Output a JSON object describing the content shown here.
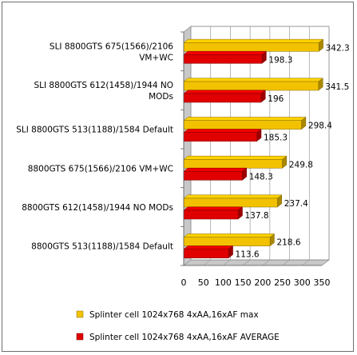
{
  "chart_data": {
    "type": "bar",
    "orientation": "horizontal",
    "categories": [
      "SLI 8800GTS 675(1566)/2106 VM+WC",
      "SLI 8800GTS 612(1458)/1944 NO MODs",
      "SLI 8800GTS 513(1188)/1584 Default",
      "8800GTS 675(1566)/2106 VM+WC",
      "8800GTS 612(1458)/1944 NO MODs",
      "8800GTS 513(1188)/1584 Default"
    ],
    "category_lines": [
      [
        "SLI 8800GTS 675(1566)/2106",
        "VM+WC"
      ],
      [
        "SLI 8800GTS 612(1458)/1944 NO",
        "MODs"
      ],
      [
        "SLI 8800GTS 513(1188)/1584 Default"
      ],
      [
        "8800GTS 675(1566)/2106 VM+WC"
      ],
      [
        "8800GTS 612(1458)/1944 NO MODs"
      ],
      [
        "8800GTS 513(1188)/1584 Default"
      ]
    ],
    "series": [
      {
        "name": "Splinter cell 1024x768 4xAA,16xAF max",
        "color": "#f2c200",
        "values": [
          342.3,
          341.5,
          298.4,
          249.8,
          237.4,
          218.6
        ],
        "labels": [
          "342.3",
          "341.5",
          "298.4",
          "249.8",
          "237.4",
          "218.6"
        ]
      },
      {
        "name": "Splinter cell 1024x768 4xAA,16xAF AVERAGE",
        "color": "#e00000",
        "values": [
          198.3,
          196,
          185.3,
          148.3,
          137.8,
          113.6
        ],
        "labels": [
          "198.3",
          "196",
          "185.3",
          "148.3",
          "137.8",
          "113.6"
        ]
      }
    ],
    "xlim": [
      0,
      350
    ],
    "xticks": [
      "0",
      "50",
      "100",
      "150",
      "200",
      "250",
      "300",
      "350"
    ],
    "grid": true,
    "legend": "bottom"
  }
}
